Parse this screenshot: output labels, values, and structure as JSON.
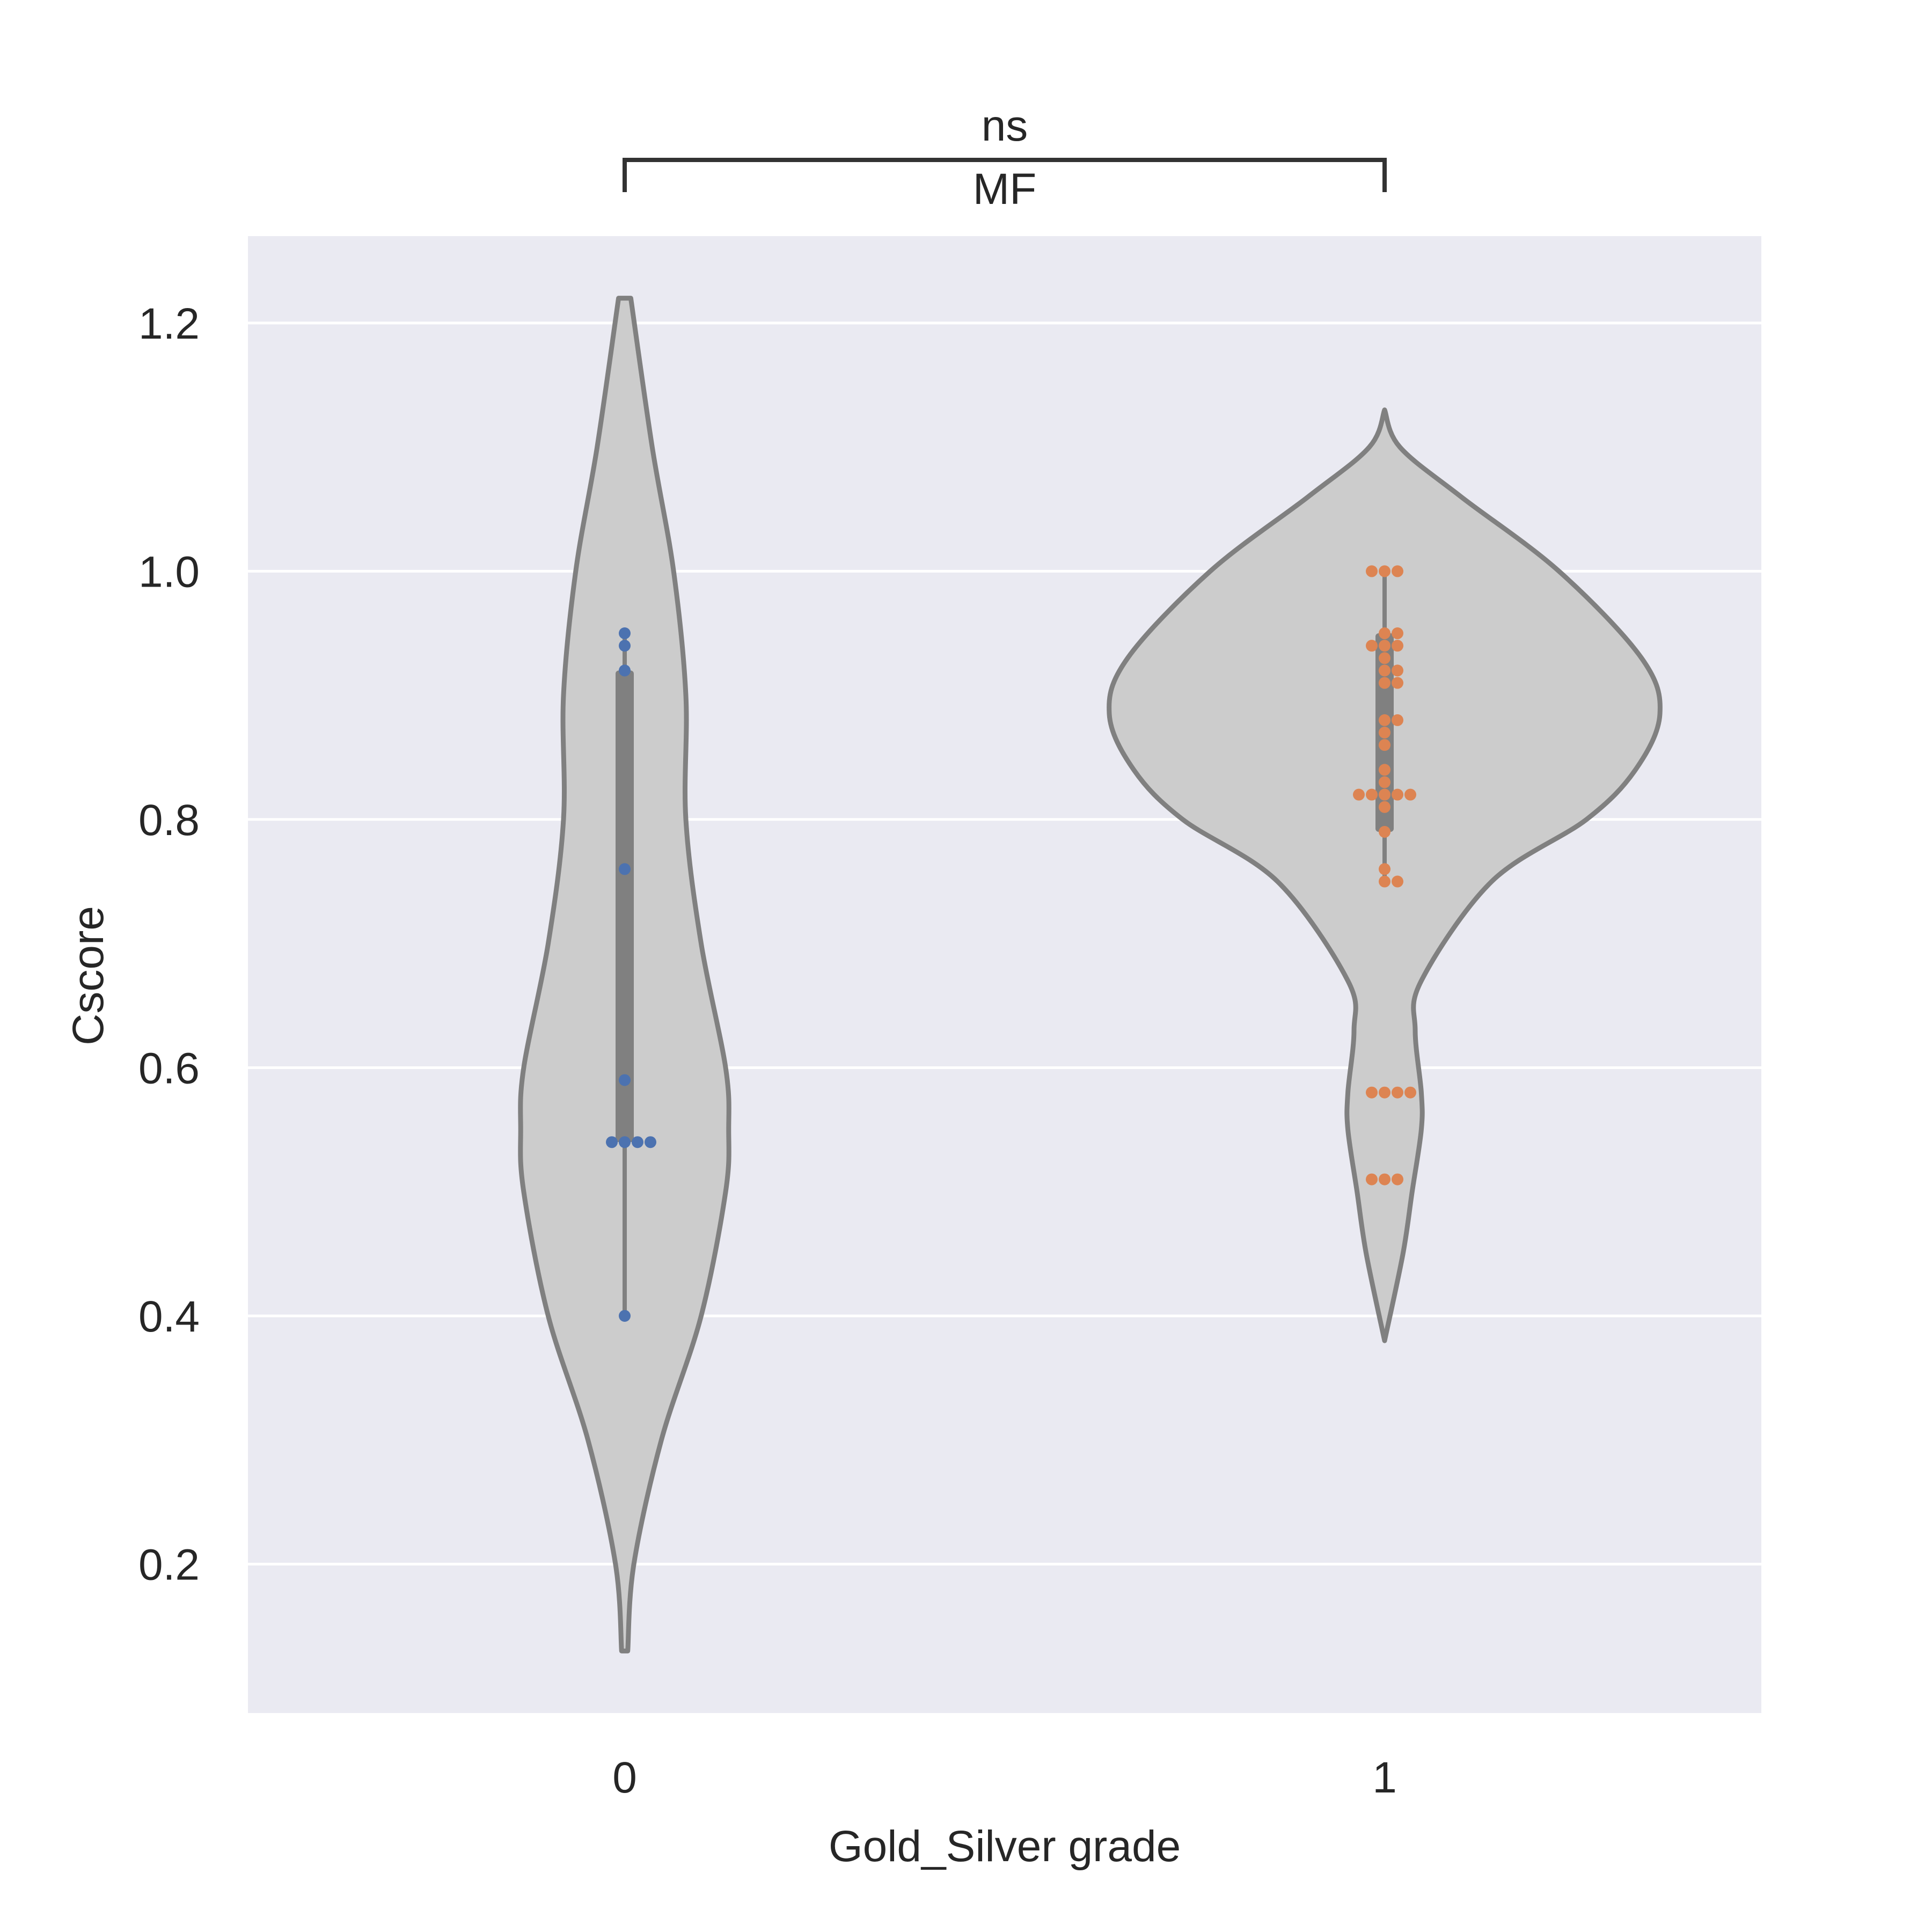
{
  "chart_data": {
    "type": "violin",
    "xlabel": "Gold_Silver grade",
    "ylabel": "Cscore",
    "categories": [
      "0",
      "1"
    ],
    "ylim": [
      0.08,
      1.27
    ],
    "yticks": [
      0.2,
      0.4,
      0.6,
      0.8,
      1.0,
      1.2
    ],
    "ytick_labels": [
      "0.2",
      "0.4",
      "0.6",
      "0.8",
      "1.0",
      "1.2"
    ],
    "grid": true,
    "annotation": {
      "groups": [
        "0",
        "1"
      ],
      "label_top": "ns",
      "label_bottom": "MF"
    },
    "violins": [
      {
        "category": "0",
        "profile": [
          [
            0.13,
            0.01
          ],
          [
            0.2,
            0.03
          ],
          [
            0.3,
            0.12
          ],
          [
            0.4,
            0.25
          ],
          [
            0.5,
            0.33
          ],
          [
            0.55,
            0.34
          ],
          [
            0.6,
            0.33
          ],
          [
            0.7,
            0.25
          ],
          [
            0.8,
            0.2
          ],
          [
            0.9,
            0.2
          ],
          [
            1.0,
            0.16
          ],
          [
            1.1,
            0.09
          ],
          [
            1.22,
            0.02
          ]
        ],
        "box": {
          "q1": 0.54,
          "q3": 0.92,
          "whisker_low": 0.4,
          "whisker_high": 0.95
        }
      },
      {
        "category": "1",
        "profile": [
          [
            0.38,
            0.0
          ],
          [
            0.45,
            0.06
          ],
          [
            0.5,
            0.09
          ],
          [
            0.55,
            0.12
          ],
          [
            0.58,
            0.12
          ],
          [
            0.63,
            0.1
          ],
          [
            0.67,
            0.12
          ],
          [
            0.75,
            0.35
          ],
          [
            0.8,
            0.66
          ],
          [
            0.84,
            0.82
          ],
          [
            0.885,
            0.9
          ],
          [
            0.93,
            0.84
          ],
          [
            1.0,
            0.57
          ],
          [
            1.06,
            0.25
          ],
          [
            1.1,
            0.05
          ],
          [
            1.13,
            0.0
          ]
        ],
        "box": {
          "q1": 0.79,
          "q3": 0.95,
          "whisker_low": 0.75,
          "whisker_high": 1.0
        }
      }
    ],
    "series": [
      {
        "name": "0",
        "color": "#4c72b0",
        "x": [
          "0",
          "0",
          "0",
          "0",
          "0",
          "0",
          "0",
          "0",
          "0",
          "0"
        ],
        "values": [
          0.95,
          0.94,
          0.92,
          0.76,
          0.59,
          0.54,
          0.54,
          0.54,
          0.54,
          0.4
        ]
      },
      {
        "name": "1",
        "color": "#dd8452",
        "x": [
          "1",
          "1",
          "1",
          "1",
          "1",
          "1",
          "1",
          "1",
          "1",
          "1",
          "1",
          "1",
          "1",
          "1",
          "1",
          "1",
          "1",
          "1",
          "1",
          "1",
          "1",
          "1",
          "1",
          "1",
          "1",
          "1",
          "1",
          "1",
          "1",
          "1",
          "1",
          "1",
          "1",
          "1",
          "1",
          "1"
        ],
        "values": [
          1.0,
          1.0,
          1.0,
          0.95,
          0.95,
          0.94,
          0.94,
          0.94,
          0.93,
          0.92,
          0.92,
          0.91,
          0.91,
          0.88,
          0.88,
          0.87,
          0.86,
          0.84,
          0.83,
          0.82,
          0.82,
          0.82,
          0.82,
          0.82,
          0.81,
          0.79,
          0.76,
          0.75,
          0.75,
          0.58,
          0.58,
          0.58,
          0.58,
          0.51,
          0.51,
          0.51
        ]
      }
    ]
  }
}
